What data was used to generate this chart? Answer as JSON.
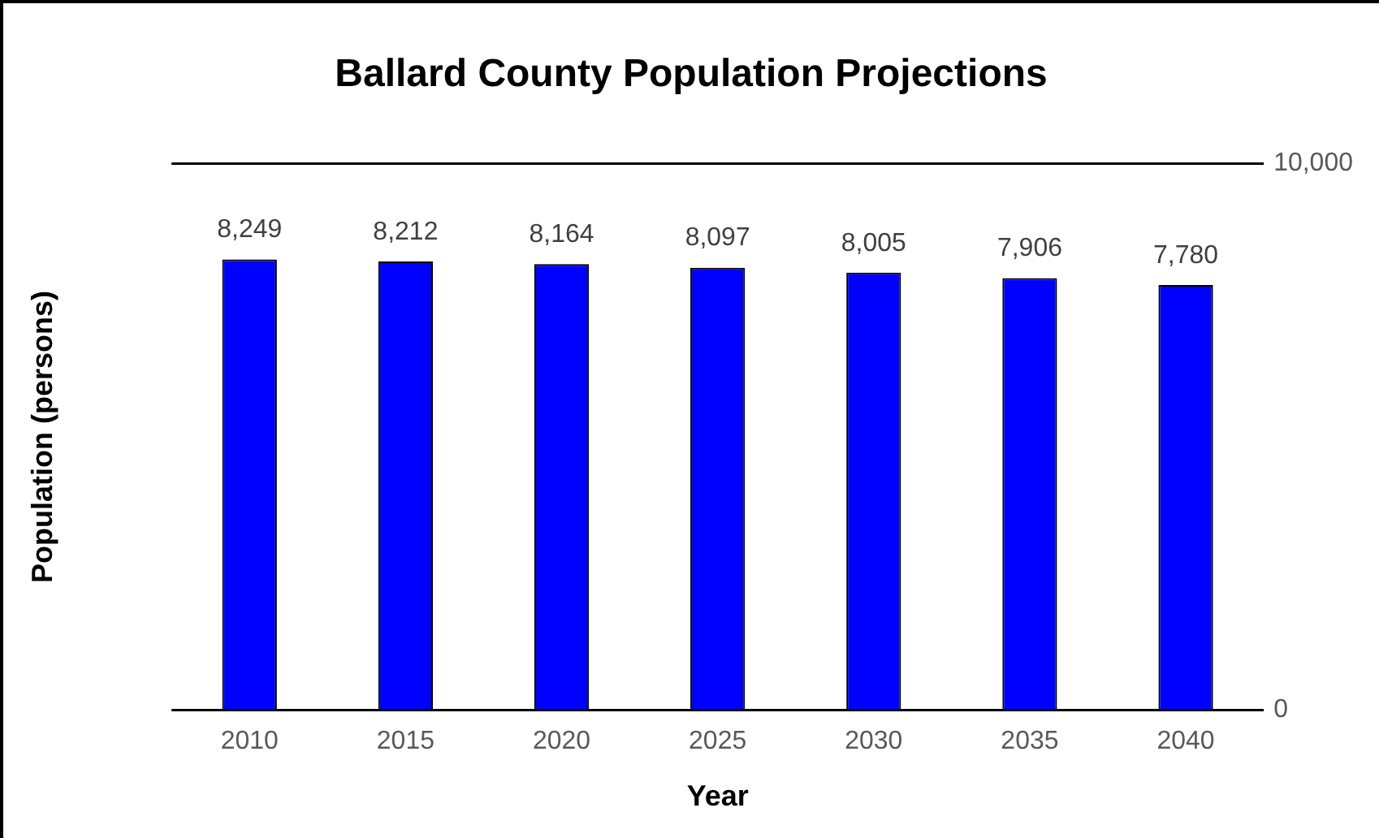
{
  "chart_data": {
    "type": "bar",
    "title": "Ballard County Population Projections",
    "xlabel": "Year",
    "ylabel": "Population (persons)",
    "categories": [
      "2010",
      "2015",
      "2020",
      "2025",
      "2030",
      "2035",
      "2040"
    ],
    "values": [
      8249,
      8212,
      8164,
      8097,
      8005,
      7906,
      7780
    ],
    "color": "#0000ff",
    "value_labels": [
      "8,249",
      "8,212",
      "8,164",
      "8,097",
      "8,005",
      "7,906",
      "7,780"
    ],
    "ylim": [
      0,
      10000
    ],
    "yticks": [
      {
        "value": 0,
        "label": "0"
      },
      {
        "value": 10000,
        "label": "10,000"
      }
    ]
  }
}
